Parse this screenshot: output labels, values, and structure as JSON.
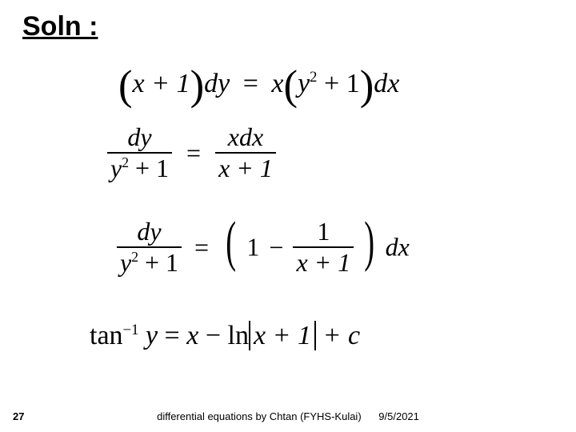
{
  "title": "Soln :",
  "eq1": {
    "lhs_open": "(",
    "lhs_inner": "x + 1",
    "lhs_close": ")",
    "dy": "dy",
    "equals": "=",
    "x": "x",
    "rp_open": "(",
    "y": "y",
    "exp2": "2",
    "plus1": " + 1",
    "rp_close": ")",
    "dx": "dx"
  },
  "eq2": {
    "num_l": "dy",
    "den_l_y": "y",
    "den_l_exp": "2",
    "den_l_rest": " + 1",
    "equals": "=",
    "num_r": "xdx",
    "den_r": "x + 1"
  },
  "eq3": {
    "num_l": "dy",
    "den_l_y": "y",
    "den_l_exp": "2",
    "den_l_rest": " + 1",
    "equals": "=",
    "one": "1",
    "minus": "−",
    "inner_num": "1",
    "inner_den": "x + 1",
    "dx": "dx"
  },
  "eq4": {
    "tan": "tan",
    "neg1": "−1",
    "y": " y",
    "equals": " = ",
    "x": "x",
    "minus": " − ",
    "ln": "ln",
    "abs_inner": "x + 1",
    "plus_c": " + c"
  },
  "footer": {
    "page": "27",
    "center": "differential equations  by Chtan (FYHS-Kulai)",
    "date": "9/5/2021"
  }
}
